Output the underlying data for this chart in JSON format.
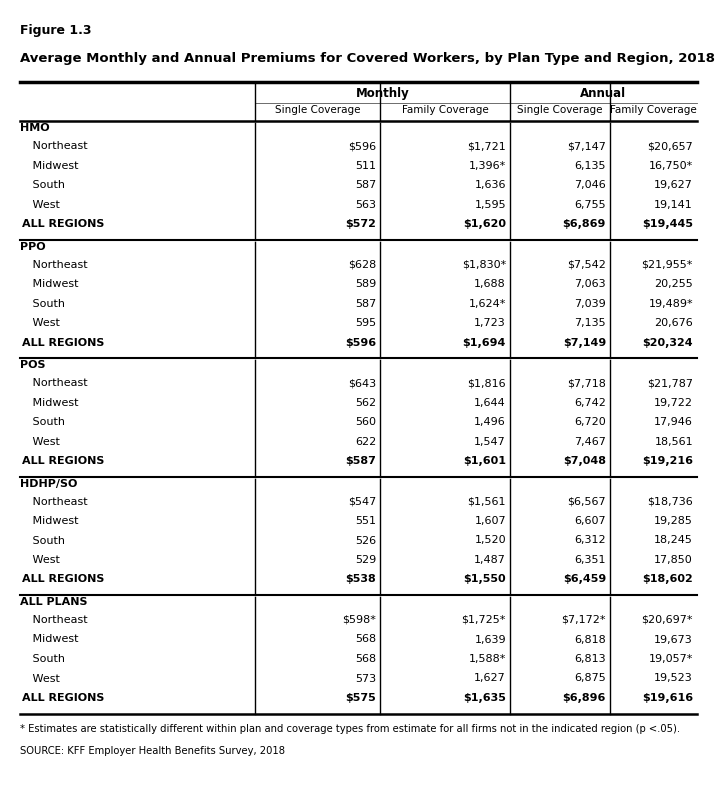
{
  "figure_label": "Figure 1.3",
  "title": "Average Monthly and Annual Premiums for Covered Workers, by Plan Type and Region, 2018",
  "sections": [
    {
      "plan": "HMO",
      "rows": [
        {
          "region": "   Northeast",
          "vals": [
            "$596",
            "$1,721",
            "$7,147",
            "$20,657"
          ],
          "bold": false
        },
        {
          "region": "   Midwest",
          "vals": [
            "511",
            "1,396*",
            "6,135",
            "16,750*"
          ],
          "bold": false
        },
        {
          "region": "   South",
          "vals": [
            "587",
            "1,636",
            "7,046",
            "19,627"
          ],
          "bold": false
        },
        {
          "region": "   West",
          "vals": [
            "563",
            "1,595",
            "6,755",
            "19,141"
          ],
          "bold": false
        },
        {
          "region": "ALL REGIONS",
          "vals": [
            "$572",
            "$1,620",
            "$6,869",
            "$19,445"
          ],
          "bold": true
        }
      ]
    },
    {
      "plan": "PPO",
      "rows": [
        {
          "region": "   Northeast",
          "vals": [
            "$628",
            "$1,830*",
            "$7,542",
            "$21,955*"
          ],
          "bold": false
        },
        {
          "region": "   Midwest",
          "vals": [
            "589",
            "1,688",
            "7,063",
            "20,255"
          ],
          "bold": false
        },
        {
          "region": "   South",
          "vals": [
            "587",
            "1,624*",
            "7,039",
            "19,489*"
          ],
          "bold": false
        },
        {
          "region": "   West",
          "vals": [
            "595",
            "1,723",
            "7,135",
            "20,676"
          ],
          "bold": false
        },
        {
          "region": "ALL REGIONS",
          "vals": [
            "$596",
            "$1,694",
            "$7,149",
            "$20,324"
          ],
          "bold": true
        }
      ]
    },
    {
      "plan": "POS",
      "rows": [
        {
          "region": "   Northeast",
          "vals": [
            "$643",
            "$1,816",
            "$7,718",
            "$21,787"
          ],
          "bold": false
        },
        {
          "region": "   Midwest",
          "vals": [
            "562",
            "1,644",
            "6,742",
            "19,722"
          ],
          "bold": false
        },
        {
          "region": "   South",
          "vals": [
            "560",
            "1,496",
            "6,720",
            "17,946"
          ],
          "bold": false
        },
        {
          "region": "   West",
          "vals": [
            "622",
            "1,547",
            "7,467",
            "18,561"
          ],
          "bold": false
        },
        {
          "region": "ALL REGIONS",
          "vals": [
            "$587",
            "$1,601",
            "$7,048",
            "$19,216"
          ],
          "bold": true
        }
      ]
    },
    {
      "plan": "HDHP/SO",
      "rows": [
        {
          "region": "   Northeast",
          "vals": [
            "$547",
            "$1,561",
            "$6,567",
            "$18,736"
          ],
          "bold": false
        },
        {
          "region": "   Midwest",
          "vals": [
            "551",
            "1,607",
            "6,607",
            "19,285"
          ],
          "bold": false
        },
        {
          "region": "   South",
          "vals": [
            "526",
            "1,520",
            "6,312",
            "18,245"
          ],
          "bold": false
        },
        {
          "region": "   West",
          "vals": [
            "529",
            "1,487",
            "6,351",
            "17,850"
          ],
          "bold": false
        },
        {
          "region": "ALL REGIONS",
          "vals": [
            "$538",
            "$1,550",
            "$6,459",
            "$18,602"
          ],
          "bold": true
        }
      ]
    },
    {
      "plan": "ALL PLANS",
      "rows": [
        {
          "region": "   Northeast",
          "vals": [
            "$598*",
            "$1,725*",
            "$7,172*",
            "$20,697*"
          ],
          "bold": false
        },
        {
          "region": "   Midwest",
          "vals": [
            "568",
            "1,639",
            "6,818",
            "19,673"
          ],
          "bold": false
        },
        {
          "region": "   South",
          "vals": [
            "568",
            "1,588*",
            "6,813",
            "19,057*"
          ],
          "bold": false
        },
        {
          "region": "   West",
          "vals": [
            "573",
            "1,627",
            "6,875",
            "19,523"
          ],
          "bold": false
        },
        {
          "region": "ALL REGIONS",
          "vals": [
            "$575",
            "$1,635",
            "$6,896",
            "$19,616"
          ],
          "bold": true
        }
      ]
    }
  ],
  "footnote": "* Estimates are statistically different within plan and coverage types from estimate for all firms not in the indicated region (p <.05).",
  "source": "SOURCE: KFF Employer Health Benefits Survey, 2018",
  "bg_color": "#FFFFFF"
}
